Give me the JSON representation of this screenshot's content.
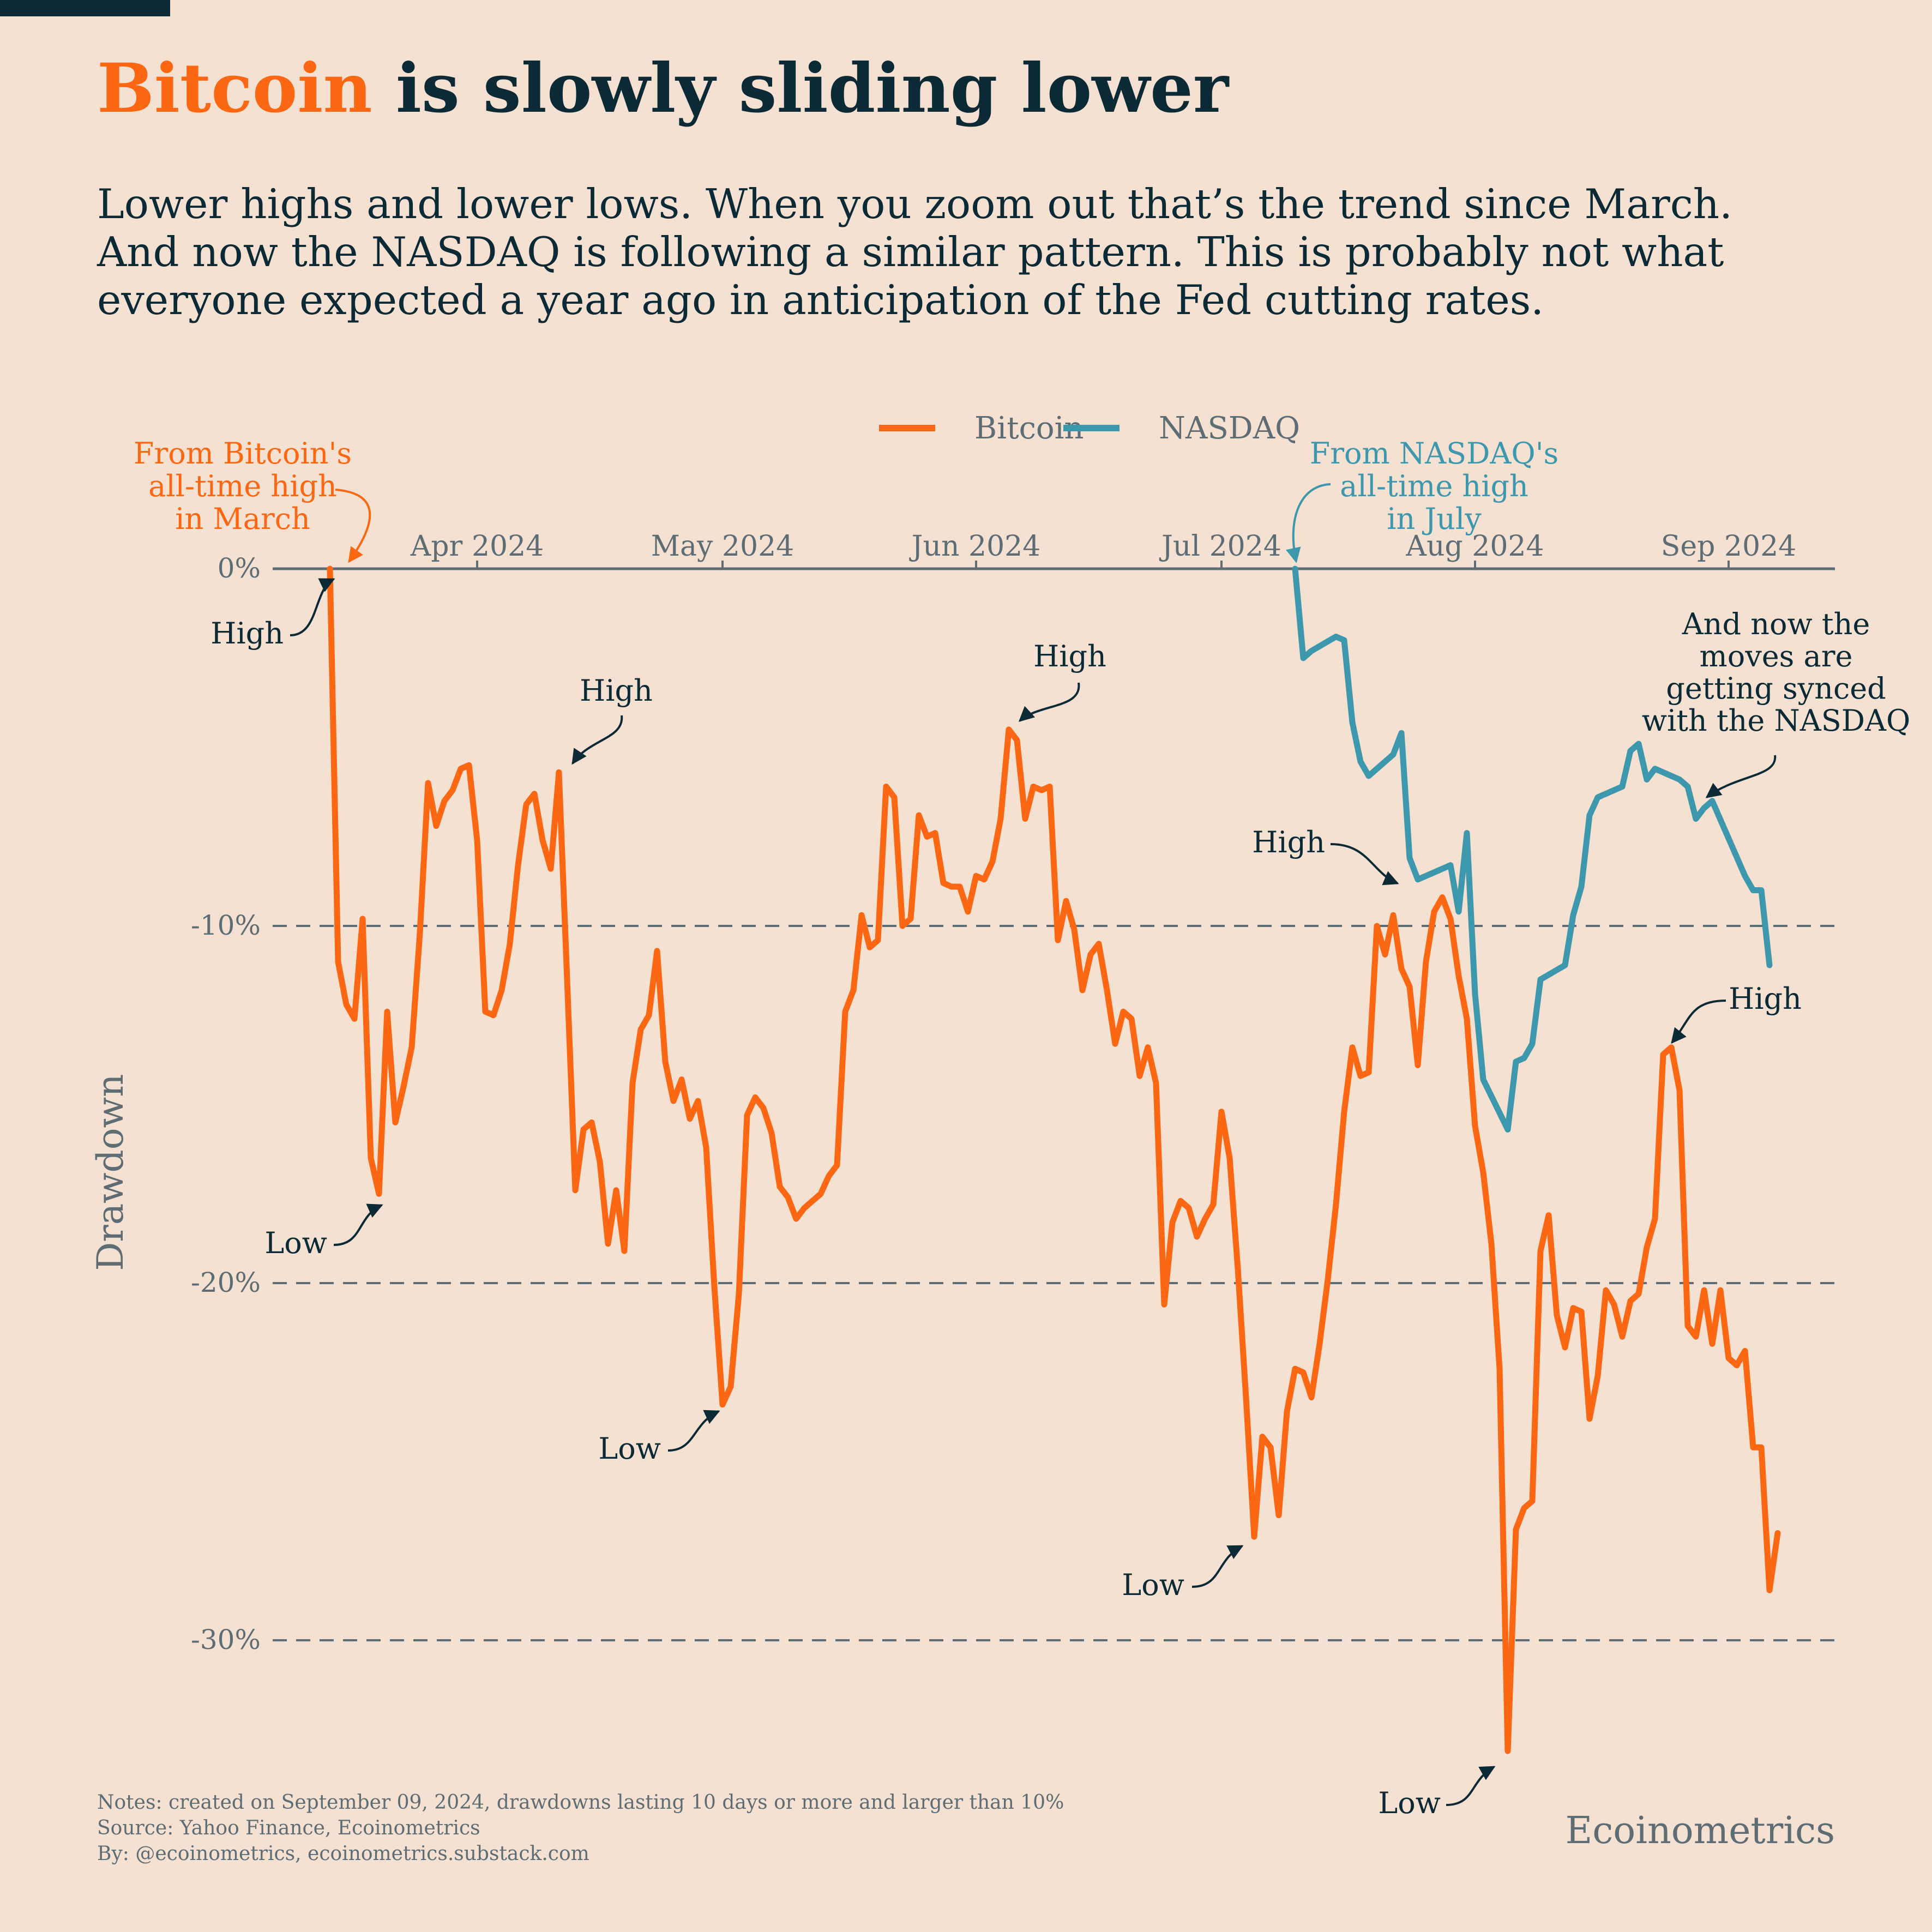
{
  "header": {
    "title_accent": "Bitcoin",
    "title_rest": " is slowly sliding lower",
    "subtitle_lines": [
      "Lower highs and lower lows. When you zoom out that’s the trend since March.",
      "And now the NASDAQ is following a similar pattern. This is probably not what",
      "everyone expected a year ago in anticipation of the Fed cutting rates."
    ]
  },
  "colors": {
    "background": "#f4e1d2",
    "bitcoin": "#fb6712",
    "nasdaq": "#3d97ad",
    "text": "#0c2a36",
    "muted": "#5e6c74"
  },
  "footer": {
    "notes": "Notes: created on September 09, 2024, drawdowns lasting 10 days or more and larger than 10%",
    "source": "Source: Yahoo Finance, Ecoinometrics",
    "by": "By: @ecoinometrics, ecoinometrics.substack.com",
    "brand": "Ecoinometrics"
  },
  "chart_data": {
    "type": "line",
    "ylabel": "Drawdown",
    "ylim": [
      -34,
      0
    ],
    "xlim": [
      "2024-03-07",
      "2024-09-14"
    ],
    "grid": "dashed horizontal at -10%, -20%, -30%",
    "legend": "top-center",
    "x_ticks": [
      {
        "date": "2024-04-01",
        "label": "Apr 2024"
      },
      {
        "date": "2024-05-01",
        "label": "May 2024"
      },
      {
        "date": "2024-06-01",
        "label": "Jun 2024"
      },
      {
        "date": "2024-07-01",
        "label": "Jul 2024"
      },
      {
        "date": "2024-08-01",
        "label": "Aug 2024"
      },
      {
        "date": "2024-09-01",
        "label": "Sep 2024"
      }
    ],
    "y_ticks": [
      {
        "value": 0,
        "label": "0%"
      },
      {
        "value": -10,
        "label": "-10%"
      },
      {
        "value": -20,
        "label": "-20%"
      },
      {
        "value": -30,
        "label": "-30%"
      }
    ],
    "series": [
      {
        "name": "Bitcoin",
        "color": "#fb6712",
        "points": [
          [
            "2024-03-14",
            0
          ],
          [
            "2024-03-15",
            -11
          ],
          [
            "2024-03-16",
            -12.2
          ],
          [
            "2024-03-17",
            -12.6
          ],
          [
            "2024-03-18",
            -9.8
          ],
          [
            "2024-03-19",
            -16.5
          ],
          [
            "2024-03-20",
            -17.5
          ],
          [
            "2024-03-21",
            -12.4
          ],
          [
            "2024-03-22",
            -15.5
          ],
          [
            "2024-03-23",
            -14.5
          ],
          [
            "2024-03-24",
            -13.4
          ],
          [
            "2024-03-25",
            -10.2
          ],
          [
            "2024-03-26",
            -6
          ],
          [
            "2024-03-27",
            -7.2
          ],
          [
            "2024-03-28",
            -6.5
          ],
          [
            "2024-03-29",
            -6.2
          ],
          [
            "2024-03-30",
            -5.6
          ],
          [
            "2024-03-31",
            -5.5
          ],
          [
            "2024-04-01",
            -7.6
          ],
          [
            "2024-04-02",
            -12.4
          ],
          [
            "2024-04-03",
            -12.5
          ],
          [
            "2024-04-04",
            -11.8
          ],
          [
            "2024-04-05",
            -10.5
          ],
          [
            "2024-04-06",
            -8.3
          ],
          [
            "2024-04-07",
            -6.6
          ],
          [
            "2024-04-08",
            -6.3
          ],
          [
            "2024-04-09",
            -7.6
          ],
          [
            "2024-04-10",
            -8.4
          ],
          [
            "2024-04-11",
            -5.7
          ],
          [
            "2024-04-12",
            -11.5
          ],
          [
            "2024-04-13",
            -17.4
          ],
          [
            "2024-04-14",
            -15.7
          ],
          [
            "2024-04-15",
            -15.5
          ],
          [
            "2024-04-16",
            -16.6
          ],
          [
            "2024-04-17",
            -18.9
          ],
          [
            "2024-04-18",
            -17.4
          ],
          [
            "2024-04-19",
            -19.1
          ],
          [
            "2024-04-20",
            -14.4
          ],
          [
            "2024-04-21",
            -12.9
          ],
          [
            "2024-04-22",
            -12.5
          ],
          [
            "2024-04-23",
            -10.7
          ],
          [
            "2024-04-24",
            -13.8
          ],
          [
            "2024-04-25",
            -14.9
          ],
          [
            "2024-04-26",
            -14.3
          ],
          [
            "2024-04-27",
            -15.4
          ],
          [
            "2024-04-28",
            -14.9
          ],
          [
            "2024-04-29",
            -16.2
          ],
          [
            "2024-04-30",
            -20.1
          ],
          [
            "2024-05-01",
            -23.4
          ],
          [
            "2024-05-02",
            -22.9
          ],
          [
            "2024-05-03",
            -20.3
          ],
          [
            "2024-05-04",
            -15.3
          ],
          [
            "2024-05-05",
            -14.8
          ],
          [
            "2024-05-06",
            -15.1
          ],
          [
            "2024-05-07",
            -15.8
          ],
          [
            "2024-05-08",
            -17.3
          ],
          [
            "2024-05-09",
            -17.6
          ],
          [
            "2024-05-10",
            -18.2
          ],
          [
            "2024-05-11",
            -17.9
          ],
          [
            "2024-05-12",
            -17.7
          ],
          [
            "2024-05-13",
            -17.5
          ],
          [
            "2024-05-14",
            -17
          ],
          [
            "2024-05-15",
            -16.7
          ],
          [
            "2024-05-16",
            -12.4
          ],
          [
            "2024-05-17",
            -11.8
          ],
          [
            "2024-05-18",
            -9.7
          ],
          [
            "2024-05-19",
            -10.6
          ],
          [
            "2024-05-20",
            -10.4
          ],
          [
            "2024-05-21",
            -6.1
          ],
          [
            "2024-05-22",
            -6.4
          ],
          [
            "2024-05-23",
            -10.0
          ],
          [
            "2024-05-24",
            -9.8
          ],
          [
            "2024-05-25",
            -6.9
          ],
          [
            "2024-05-26",
            -7.5
          ],
          [
            "2024-05-27",
            -7.4
          ],
          [
            "2024-05-28",
            -8.8
          ],
          [
            "2024-05-29",
            -8.9
          ],
          [
            "2024-05-30",
            -8.9
          ],
          [
            "2024-05-31",
            -9.6
          ],
          [
            "2024-06-01",
            -8.6
          ],
          [
            "2024-06-02",
            -8.7
          ],
          [
            "2024-06-03",
            -8.2
          ],
          [
            "2024-06-04",
            -7
          ],
          [
            "2024-06-05",
            -4.5
          ],
          [
            "2024-06-06",
            -4.8
          ],
          [
            "2024-06-07",
            -7
          ],
          [
            "2024-06-08",
            -6.1
          ],
          [
            "2024-06-09",
            -6.2
          ],
          [
            "2024-06-10",
            -6.1
          ],
          [
            "2024-06-11",
            -10.4
          ],
          [
            "2024-06-12",
            -9.3
          ],
          [
            "2024-06-13",
            -10.1
          ],
          [
            "2024-06-14",
            -11.8
          ],
          [
            "2024-06-15",
            -10.8
          ],
          [
            "2024-06-16",
            -10.5
          ],
          [
            "2024-06-17",
            -11.8
          ],
          [
            "2024-06-18",
            -13.3
          ],
          [
            "2024-06-19",
            -12.4
          ],
          [
            "2024-06-20",
            -12.6
          ],
          [
            "2024-06-21",
            -14.2
          ],
          [
            "2024-06-22",
            -13.4
          ],
          [
            "2024-06-23",
            -14.4
          ],
          [
            "2024-06-24",
            -20.6
          ],
          [
            "2024-06-25",
            -18.3
          ],
          [
            "2024-06-26",
            -17.7
          ],
          [
            "2024-06-27",
            -17.9
          ],
          [
            "2024-06-28",
            -18.7
          ],
          [
            "2024-06-29",
            -18.2
          ],
          [
            "2024-06-30",
            -17.8
          ],
          [
            "2024-07-01",
            -15.2
          ],
          [
            "2024-07-02",
            -16.5
          ],
          [
            "2024-07-03",
            -19.6
          ],
          [
            "2024-07-04",
            -23.2
          ],
          [
            "2024-07-05",
            -27.1
          ],
          [
            "2024-07-06",
            -24.3
          ],
          [
            "2024-07-07",
            -24.6
          ],
          [
            "2024-07-08",
            -26.5
          ],
          [
            "2024-07-09",
            -23.6
          ],
          [
            "2024-07-10",
            -22.4
          ],
          [
            "2024-07-11",
            -22.5
          ],
          [
            "2024-07-12",
            -23.2
          ],
          [
            "2024-07-13",
            -21.7
          ],
          [
            "2024-07-14",
            -19.9
          ],
          [
            "2024-07-15",
            -17.8
          ],
          [
            "2024-07-16",
            -15.2
          ],
          [
            "2024-07-17",
            -13.4
          ],
          [
            "2024-07-18",
            -14.2
          ],
          [
            "2024-07-19",
            -14.1
          ],
          [
            "2024-07-20",
            -10
          ],
          [
            "2024-07-21",
            -10.8
          ],
          [
            "2024-07-22",
            -9.7
          ],
          [
            "2024-07-23",
            -11.2
          ],
          [
            "2024-07-24",
            -11.7
          ],
          [
            "2024-07-25",
            -13.9
          ],
          [
            "2024-07-26",
            -11
          ],
          [
            "2024-07-27",
            -9.6
          ],
          [
            "2024-07-28",
            -9.2
          ],
          [
            "2024-07-29",
            -9.8
          ],
          [
            "2024-07-30",
            -11.4
          ],
          [
            "2024-07-31",
            -12.6
          ],
          [
            "2024-08-01",
            -15.6
          ],
          [
            "2024-08-02",
            -16.9
          ],
          [
            "2024-08-03",
            -18.9
          ],
          [
            "2024-08-04",
            -22.4
          ],
          [
            "2024-08-05",
            -33.1
          ],
          [
            "2024-08-06",
            -26.9
          ],
          [
            "2024-08-07",
            -26.3
          ],
          [
            "2024-08-08",
            -26.1
          ],
          [
            "2024-08-09",
            -19.1
          ],
          [
            "2024-08-10",
            -18.1
          ],
          [
            "2024-08-11",
            -20.9
          ],
          [
            "2024-08-12",
            -21.8
          ],
          [
            "2024-08-13",
            -20.7
          ],
          [
            "2024-08-14",
            -20.8
          ],
          [
            "2024-08-15",
            -23.8
          ],
          [
            "2024-08-16",
            -22.6
          ],
          [
            "2024-08-17",
            -20.2
          ],
          [
            "2024-08-18",
            -20.6
          ],
          [
            "2024-08-19",
            -21.5
          ],
          [
            "2024-08-20",
            -20.5
          ],
          [
            "2024-08-21",
            -20.3
          ],
          [
            "2024-08-22",
            -19
          ],
          [
            "2024-08-23",
            -18.2
          ],
          [
            "2024-08-24",
            -13.6
          ],
          [
            "2024-08-25",
            -13.4
          ],
          [
            "2024-08-26",
            -14.6
          ],
          [
            "2024-08-27",
            -21.2
          ],
          [
            "2024-08-28",
            -21.5
          ],
          [
            "2024-08-29",
            -20.2
          ],
          [
            "2024-08-30",
            -21.7
          ],
          [
            "2024-08-31",
            -20.2
          ],
          [
            "2024-09-01",
            -22.1
          ],
          [
            "2024-09-02",
            -22.3
          ],
          [
            "2024-09-03",
            -21.9
          ],
          [
            "2024-09-04",
            -24.6
          ],
          [
            "2024-09-05",
            -24.6
          ],
          [
            "2024-09-06",
            -28.6
          ],
          [
            "2024-09-07",
            -27
          ]
        ]
      },
      {
        "name": "NASDAQ",
        "color": "#3d97ad",
        "points": [
          [
            "2024-07-10",
            0
          ],
          [
            "2024-07-11",
            -2.5
          ],
          [
            "2024-07-12",
            -2.3
          ],
          [
            "2024-07-15",
            -1.9
          ],
          [
            "2024-07-16",
            -2
          ],
          [
            "2024-07-17",
            -4.3
          ],
          [
            "2024-07-18",
            -5.4
          ],
          [
            "2024-07-19",
            -5.8
          ],
          [
            "2024-07-22",
            -5.2
          ],
          [
            "2024-07-23",
            -4.6
          ],
          [
            "2024-07-24",
            -8.1
          ],
          [
            "2024-07-25",
            -8.7
          ],
          [
            "2024-07-26",
            -8.6
          ],
          [
            "2024-07-29",
            -8.3
          ],
          [
            "2024-07-30",
            -9.6
          ],
          [
            "2024-07-31",
            -7.4
          ],
          [
            "2024-08-01",
            -11.9
          ],
          [
            "2024-08-02",
            -14.3
          ],
          [
            "2024-08-05",
            -15.7
          ],
          [
            "2024-08-06",
            -13.8
          ],
          [
            "2024-08-07",
            -13.7
          ],
          [
            "2024-08-08",
            -13.3
          ],
          [
            "2024-08-09",
            -11.5
          ],
          [
            "2024-08-12",
            -11.1
          ],
          [
            "2024-08-13",
            -9.7
          ],
          [
            "2024-08-14",
            -8.9
          ],
          [
            "2024-08-15",
            -6.9
          ],
          [
            "2024-08-16",
            -6.4
          ],
          [
            "2024-08-19",
            -6.1
          ],
          [
            "2024-08-20",
            -5.1
          ],
          [
            "2024-08-21",
            -4.9
          ],
          [
            "2024-08-22",
            -5.9
          ],
          [
            "2024-08-23",
            -5.6
          ],
          [
            "2024-08-26",
            -5.9
          ],
          [
            "2024-08-27",
            -6.1
          ],
          [
            "2024-08-28",
            -7.0
          ],
          [
            "2024-08-29",
            -6.7
          ],
          [
            "2024-08-30",
            -6.5
          ],
          [
            "2024-09-03",
            -8.6
          ],
          [
            "2024-09-04",
            -9.0
          ],
          [
            "2024-09-05",
            -9.0
          ],
          [
            "2024-09-06",
            -11.1
          ]
        ]
      }
    ],
    "annotations": [
      {
        "text": "From Bitcoin's\nall-time high\nin March",
        "color": "#fb6712"
      },
      {
        "text": "From NASDAQ's\nall-time high\nin July",
        "color": "#3d97ad"
      },
      {
        "text": "High",
        "color": "#0c2a36"
      },
      {
        "text": "Low",
        "color": "#0c2a36"
      },
      {
        "text": "High",
        "color": "#0c2a36"
      },
      {
        "text": "Low",
        "color": "#0c2a36"
      },
      {
        "text": "High",
        "color": "#0c2a36"
      },
      {
        "text": "Low",
        "color": "#0c2a36"
      },
      {
        "text": "High",
        "color": "#0c2a36"
      },
      {
        "text": "Low",
        "color": "#0c2a36"
      },
      {
        "text": "High",
        "color": "#0c2a36"
      },
      {
        "text": "And now the\nmoves are\ngetting synced\nwith the NASDAQ",
        "color": "#0c2a36"
      }
    ]
  }
}
